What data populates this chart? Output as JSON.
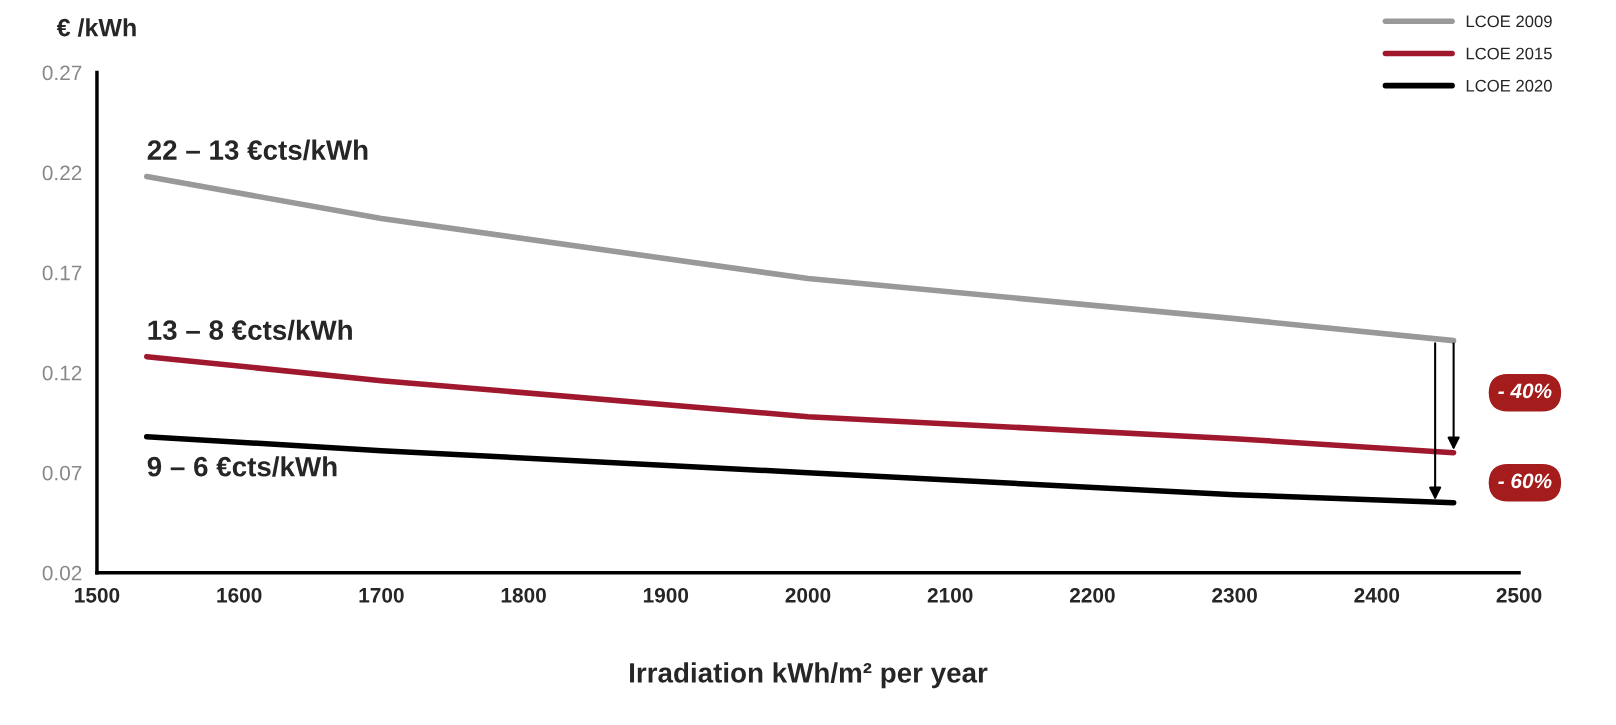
{
  "chart_data": {
    "type": "line",
    "xlabel": "Irradiation kWh/m² per year",
    "ylabel": "€ /kWh",
    "x": [
      1535,
      1700,
      2000,
      2300,
      2454
    ],
    "series": [
      {
        "name": "LCOE 2009",
        "color": "#999999",
        "values": [
          0.218,
          0.197,
          0.167,
          0.147,
          0.136
        ]
      },
      {
        "name": "LCOE 2015",
        "color": "#a0182e",
        "values": [
          0.128,
          0.116,
          0.098,
          0.087,
          0.08
        ]
      },
      {
        "name": "LCOE 2020",
        "color": "#000000",
        "values": [
          0.088,
          0.081,
          0.07,
          0.059,
          0.055
        ]
      }
    ],
    "xlim": [
      1500,
      2500
    ],
    "xticks": [
      1500,
      1600,
      1700,
      1800,
      1900,
      2000,
      2100,
      2200,
      2300,
      2400,
      2500
    ],
    "ylim": [
      0.02,
      0.27
    ],
    "yticks": [
      0.02,
      0.07,
      0.12,
      0.17,
      0.22,
      0.27
    ],
    "annotations": [
      "22 – 13 €cts/kWh",
      "13 – 8 €cts/kWh",
      "9 – 6 €cts/kWh",
      "- 40%",
      "- 60%"
    ],
    "grid": false,
    "legend": "top right",
    "line_style": "solid",
    "marker": "none"
  }
}
